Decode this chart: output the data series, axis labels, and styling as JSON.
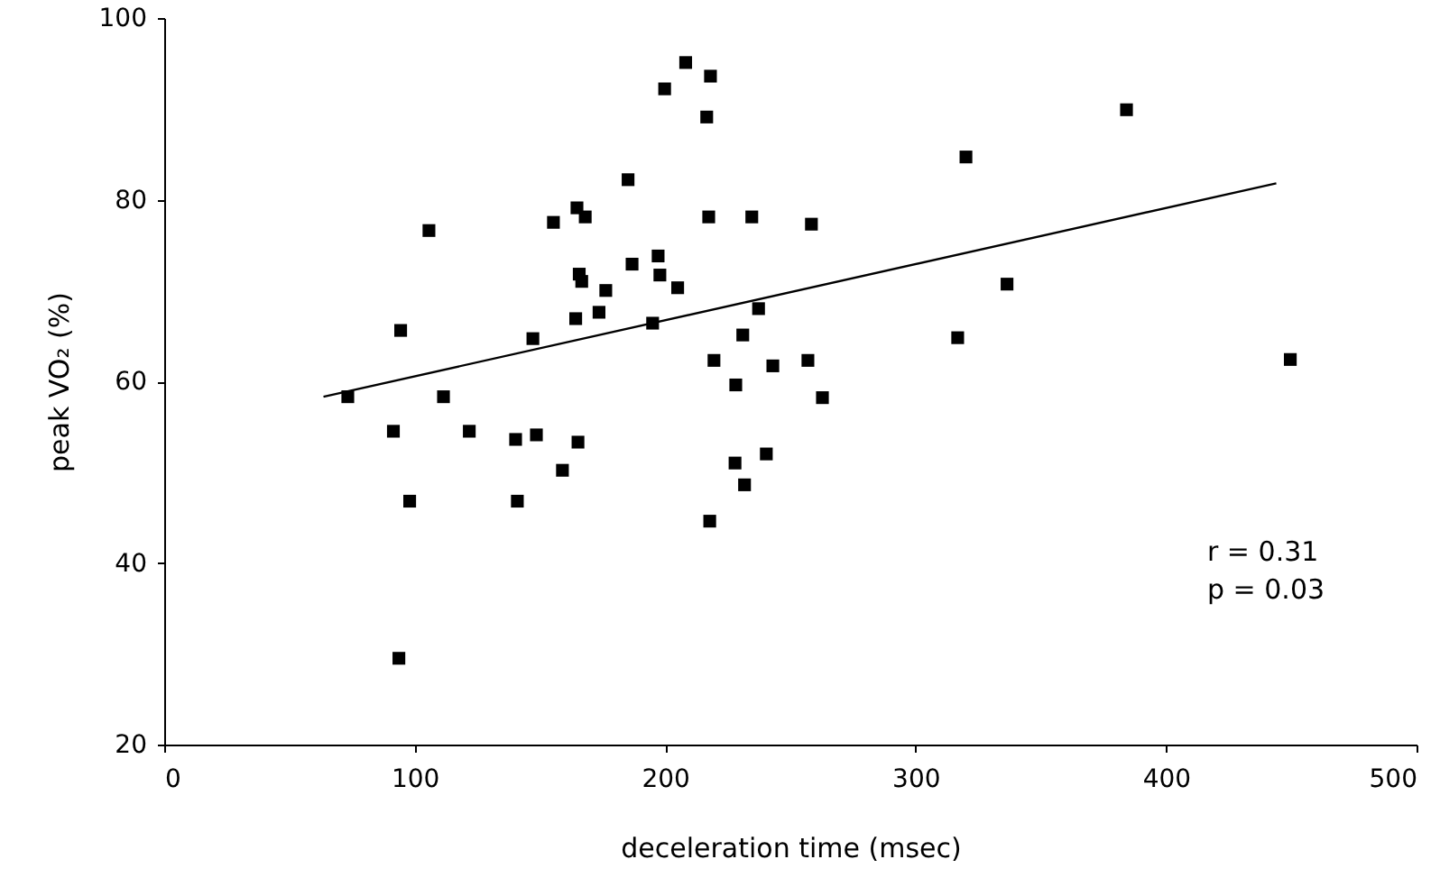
{
  "chart_data": {
    "type": "scatter",
    "xlabel": "deceleration time (msec)",
    "ylabel": "peak VO₂ (%)",
    "xlim": [
      0,
      500
    ],
    "xticks": [
      0,
      100,
      200,
      300,
      400,
      500
    ],
    "ylim": [
      20,
      100
    ],
    "yticks": [
      20,
      40,
      60,
      80,
      100
    ],
    "grid": false,
    "annotations": [
      "r = 0.31",
      "p = 0.03"
    ],
    "series": [
      {
        "marker": "square",
        "color": "#000000",
        "x": [
          73.3,
          105.7,
          94.4,
          147.2,
          111.5,
          91.5,
          121.8,
          140.3,
          148.6,
          98,
          141,
          93.7,
          155.4,
          159,
          208.2,
          218.1,
          199.8,
          216.6,
          185.2,
          164.8,
          168.1,
          217.4,
          234.6,
          258.4,
          186.8,
          197.2,
          197.9,
          165.7,
          166.7,
          176.3,
          205,
          164.3,
          173.6,
          195,
          237.3,
          231,
          219.5,
          243,
          257,
          228.2,
          262.8,
          165.2,
          227.9,
          240.4,
          231.7,
          217.8,
          384.2,
          320.1,
          336.5,
          316.8,
          449.6
        ],
        "values": [
          58.3,
          76.6,
          65.6,
          64.7,
          58.3,
          54.5,
          54.5,
          53.6,
          54.1,
          46.8,
          46.8,
          29.5,
          77.5,
          50.2,
          95.1,
          93.6,
          92.2,
          89.1,
          82.2,
          79.1,
          78.1,
          78.1,
          78.1,
          77.3,
          72.9,
          73.8,
          71.7,
          71.8,
          71.0,
          70.0,
          70.3,
          66.9,
          67.6,
          66.4,
          68.0,
          65.1,
          62.3,
          61.7,
          62.3,
          59.6,
          58.2,
          53.3,
          51.0,
          52.0,
          48.6,
          44.6,
          89.9,
          84.7,
          70.7,
          64.8,
          62.4
        ]
      },
      {
        "type": "line",
        "marker": "none",
        "color": "#000000",
        "x": [
          63.6,
          444
        ],
        "values": [
          58.3,
          81.8
        ]
      }
    ]
  }
}
